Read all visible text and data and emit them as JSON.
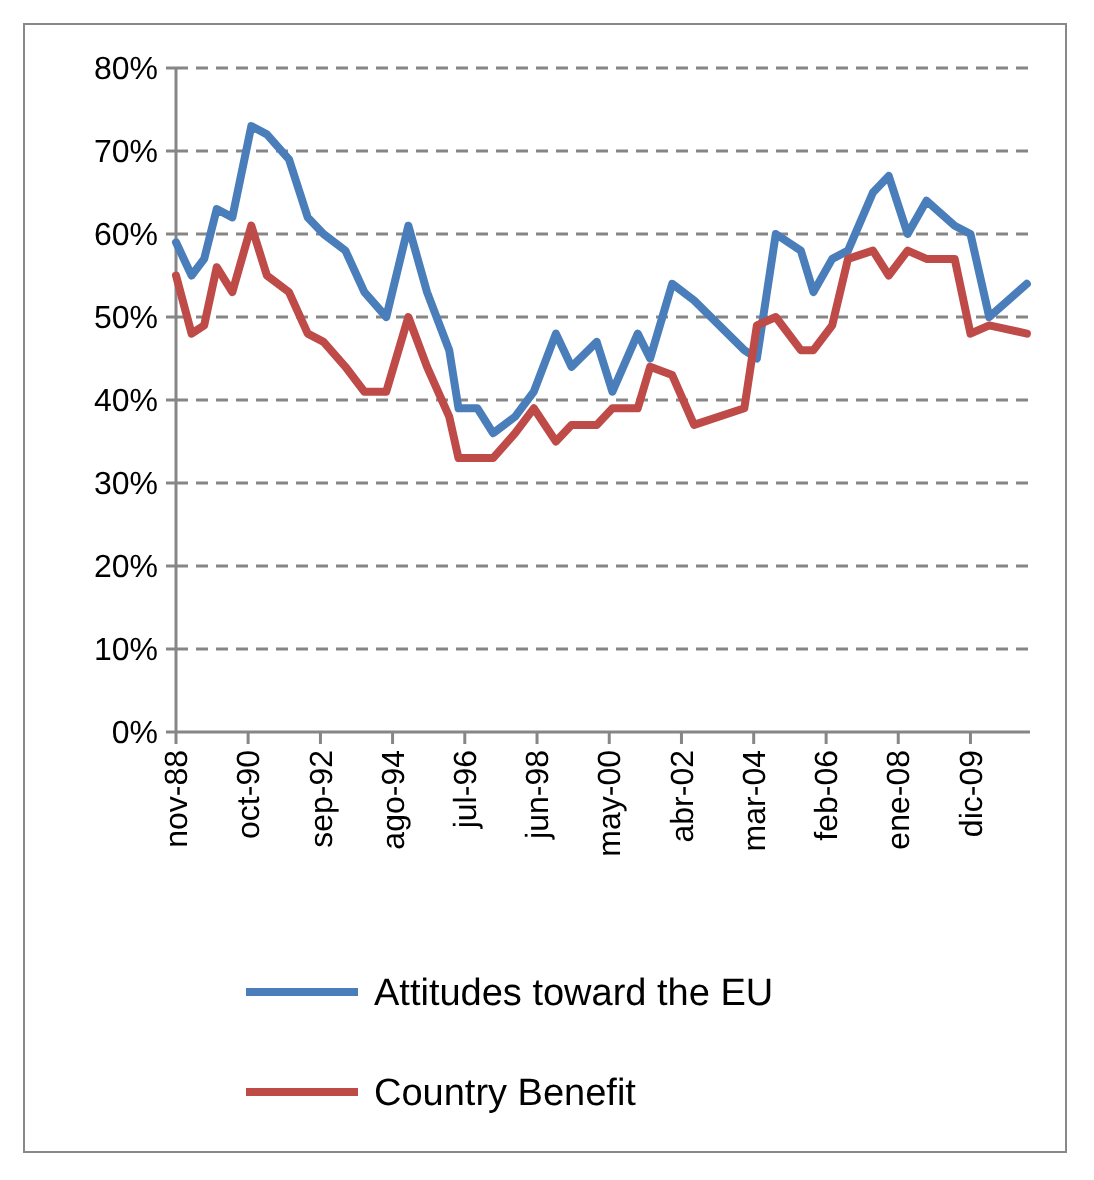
{
  "chart_data": {
    "type": "line",
    "x": [
      "1988-11",
      "1989-04",
      "1989-08",
      "1989-12",
      "1990-05",
      "1990-11",
      "1991-04",
      "1991-11",
      "1992-05",
      "1992-10",
      "1993-05",
      "1993-11",
      "1994-06",
      "1995-01",
      "1995-07",
      "1996-02",
      "1996-05",
      "1996-11",
      "1997-04",
      "1997-11",
      "1998-05",
      "1998-12",
      "1999-05",
      "2000-01",
      "2000-06",
      "2001-02",
      "2001-06",
      "2002-01",
      "2002-08",
      "2003-12",
      "2004-04",
      "2004-10",
      "2005-06",
      "2005-10",
      "2006-04",
      "2006-09",
      "2007-05",
      "2007-10",
      "2008-04",
      "2008-10",
      "2009-07",
      "2009-12",
      "2010-06",
      "2011-06"
    ],
    "series": [
      {
        "name": "Attitudes toward the EU",
        "color": "#4a7ebb",
        "values": [
          59,
          55,
          57,
          63,
          62,
          73,
          72,
          69,
          62,
          60,
          58,
          53,
          50,
          61,
          53,
          46,
          39,
          39,
          36,
          38,
          41,
          48,
          44,
          47,
          41,
          48,
          45,
          54,
          52,
          46,
          45,
          60,
          58,
          53,
          57,
          58,
          65,
          67,
          60,
          64,
          61,
          60,
          50,
          54
        ]
      },
      {
        "name": "Country Benefit",
        "color": "#be4b48",
        "values": [
          55,
          48,
          49,
          56,
          53,
          61,
          55,
          53,
          48,
          47,
          44,
          41,
          41,
          50,
          44,
          38,
          33,
          33,
          33,
          36,
          39,
          35,
          37,
          37,
          39,
          39,
          44,
          43,
          37,
          39,
          49,
          50,
          46,
          46,
          49,
          57,
          58,
          55,
          58,
          57,
          57,
          48,
          49,
          48
        ]
      }
    ],
    "xlim": [
      "1988-11",
      "2011-07"
    ],
    "xticks": [
      {
        "value": "1988-11",
        "label": "nov-88"
      },
      {
        "value": "1990-10",
        "label": "oct-90"
      },
      {
        "value": "1992-09",
        "label": "sep-92"
      },
      {
        "value": "1994-08",
        "label": "ago-94"
      },
      {
        "value": "1996-07",
        "label": "jul-96"
      },
      {
        "value": "1998-06",
        "label": "jun-98"
      },
      {
        "value": "2000-05",
        "label": "may-00"
      },
      {
        "value": "2002-04",
        "label": "abr-02"
      },
      {
        "value": "2004-03",
        "label": "mar-04"
      },
      {
        "value": "2006-02",
        "label": "feb-06"
      },
      {
        "value": "2008-01",
        "label": "ene-08"
      },
      {
        "value": "2009-12",
        "label": "dic-09"
      }
    ],
    "ylim": [
      0,
      80
    ],
    "yticks": [
      {
        "value": 0,
        "label": "0%"
      },
      {
        "value": 10,
        "label": "10%"
      },
      {
        "value": 20,
        "label": "20%"
      },
      {
        "value": 30,
        "label": "30%"
      },
      {
        "value": 40,
        "label": "40%"
      },
      {
        "value": 50,
        "label": "50%"
      },
      {
        "value": 60,
        "label": "60%"
      },
      {
        "value": 70,
        "label": "70%"
      },
      {
        "value": 80,
        "label": "80%"
      }
    ],
    "grid": "y",
    "legend": "bottom",
    "marker": "none",
    "line_style": "solid"
  }
}
